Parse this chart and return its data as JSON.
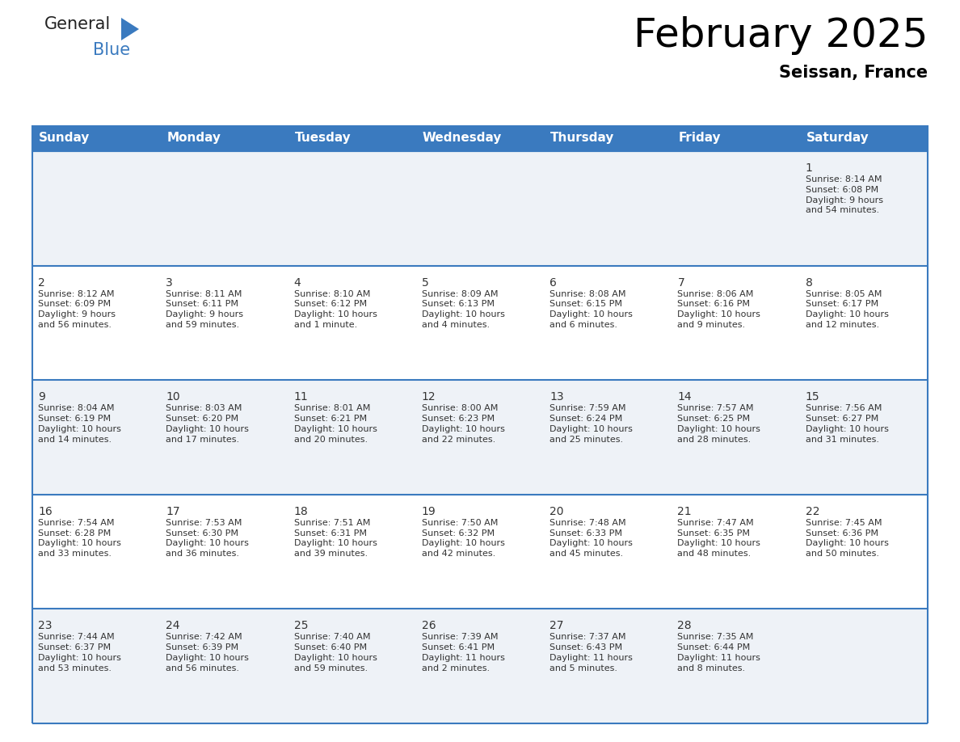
{
  "title": "February 2025",
  "subtitle": "Seissan, France",
  "header_bg": "#3a7abf",
  "header_text_color": "#ffffff",
  "cell_bg_row0": "#eef2f7",
  "cell_bg_row1": "#ffffff",
  "border_color": "#3a7abf",
  "text_color": "#333333",
  "days_of_week": [
    "Sunday",
    "Monday",
    "Tuesday",
    "Wednesday",
    "Thursday",
    "Friday",
    "Saturday"
  ],
  "calendar": [
    [
      null,
      null,
      null,
      null,
      null,
      null,
      {
        "day": "1",
        "sunrise": "8:14 AM",
        "sunset": "6:08 PM",
        "daylight": "9 hours\nand 54 minutes."
      }
    ],
    [
      {
        "day": "2",
        "sunrise": "8:12 AM",
        "sunset": "6:09 PM",
        "daylight": "9 hours\nand 56 minutes."
      },
      {
        "day": "3",
        "sunrise": "8:11 AM",
        "sunset": "6:11 PM",
        "daylight": "9 hours\nand 59 minutes."
      },
      {
        "day": "4",
        "sunrise": "8:10 AM",
        "sunset": "6:12 PM",
        "daylight": "10 hours\nand 1 minute."
      },
      {
        "day": "5",
        "sunrise": "8:09 AM",
        "sunset": "6:13 PM",
        "daylight": "10 hours\nand 4 minutes."
      },
      {
        "day": "6",
        "sunrise": "8:08 AM",
        "sunset": "6:15 PM",
        "daylight": "10 hours\nand 6 minutes."
      },
      {
        "day": "7",
        "sunrise": "8:06 AM",
        "sunset": "6:16 PM",
        "daylight": "10 hours\nand 9 minutes."
      },
      {
        "day": "8",
        "sunrise": "8:05 AM",
        "sunset": "6:17 PM",
        "daylight": "10 hours\nand 12 minutes."
      }
    ],
    [
      {
        "day": "9",
        "sunrise": "8:04 AM",
        "sunset": "6:19 PM",
        "daylight": "10 hours\nand 14 minutes."
      },
      {
        "day": "10",
        "sunrise": "8:03 AM",
        "sunset": "6:20 PM",
        "daylight": "10 hours\nand 17 minutes."
      },
      {
        "day": "11",
        "sunrise": "8:01 AM",
        "sunset": "6:21 PM",
        "daylight": "10 hours\nand 20 minutes."
      },
      {
        "day": "12",
        "sunrise": "8:00 AM",
        "sunset": "6:23 PM",
        "daylight": "10 hours\nand 22 minutes."
      },
      {
        "day": "13",
        "sunrise": "7:59 AM",
        "sunset": "6:24 PM",
        "daylight": "10 hours\nand 25 minutes."
      },
      {
        "day": "14",
        "sunrise": "7:57 AM",
        "sunset": "6:25 PM",
        "daylight": "10 hours\nand 28 minutes."
      },
      {
        "day": "15",
        "sunrise": "7:56 AM",
        "sunset": "6:27 PM",
        "daylight": "10 hours\nand 31 minutes."
      }
    ],
    [
      {
        "day": "16",
        "sunrise": "7:54 AM",
        "sunset": "6:28 PM",
        "daylight": "10 hours\nand 33 minutes."
      },
      {
        "day": "17",
        "sunrise": "7:53 AM",
        "sunset": "6:30 PM",
        "daylight": "10 hours\nand 36 minutes."
      },
      {
        "day": "18",
        "sunrise": "7:51 AM",
        "sunset": "6:31 PM",
        "daylight": "10 hours\nand 39 minutes."
      },
      {
        "day": "19",
        "sunrise": "7:50 AM",
        "sunset": "6:32 PM",
        "daylight": "10 hours\nand 42 minutes."
      },
      {
        "day": "20",
        "sunrise": "7:48 AM",
        "sunset": "6:33 PM",
        "daylight": "10 hours\nand 45 minutes."
      },
      {
        "day": "21",
        "sunrise": "7:47 AM",
        "sunset": "6:35 PM",
        "daylight": "10 hours\nand 48 minutes."
      },
      {
        "day": "22",
        "sunrise": "7:45 AM",
        "sunset": "6:36 PM",
        "daylight": "10 hours\nand 50 minutes."
      }
    ],
    [
      {
        "day": "23",
        "sunrise": "7:44 AM",
        "sunset": "6:37 PM",
        "daylight": "10 hours\nand 53 minutes."
      },
      {
        "day": "24",
        "sunrise": "7:42 AM",
        "sunset": "6:39 PM",
        "daylight": "10 hours\nand 56 minutes."
      },
      {
        "day": "25",
        "sunrise": "7:40 AM",
        "sunset": "6:40 PM",
        "daylight": "10 hours\nand 59 minutes."
      },
      {
        "day": "26",
        "sunrise": "7:39 AM",
        "sunset": "6:41 PM",
        "daylight": "11 hours\nand 2 minutes."
      },
      {
        "day": "27",
        "sunrise": "7:37 AM",
        "sunset": "6:43 PM",
        "daylight": "11 hours\nand 5 minutes."
      },
      {
        "day": "28",
        "sunrise": "7:35 AM",
        "sunset": "6:44 PM",
        "daylight": "11 hours\nand 8 minutes."
      },
      null
    ]
  ],
  "logo_blue": "#3a7abf",
  "logo_dark": "#222222",
  "title_fontsize": 36,
  "subtitle_fontsize": 15,
  "header_fontsize": 11,
  "day_num_fontsize": 10,
  "info_fontsize": 8
}
